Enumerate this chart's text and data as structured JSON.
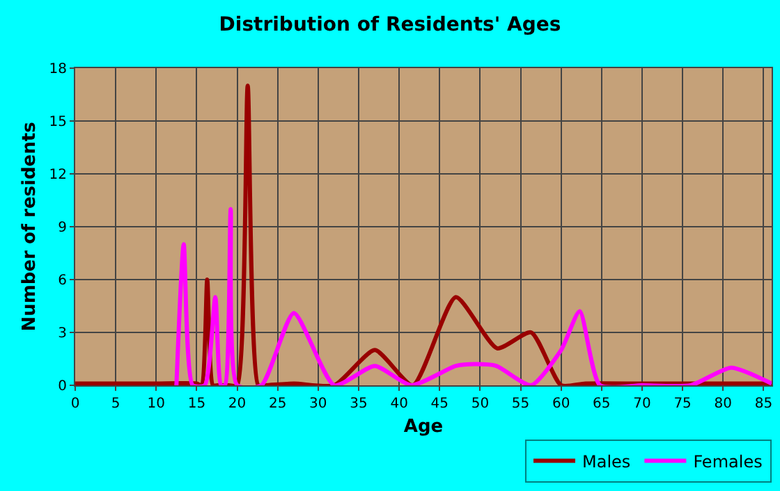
{
  "chart_data": {
    "type": "line",
    "title": "Distribution of Residents' Ages",
    "xlabel": "Age",
    "ylabel": "Number of residents",
    "xlim": [
      0,
      86
    ],
    "xticks": [
      0,
      5,
      10,
      15,
      20,
      25,
      30,
      35,
      40,
      45,
      50,
      55,
      60,
      65,
      70,
      75,
      80,
      85
    ],
    "ylim": [
      0,
      18
    ],
    "yticks": [
      0,
      3,
      6,
      9,
      12,
      15,
      18
    ],
    "grid": true,
    "legend": "bottom right",
    "marker": "none",
    "line_style": "solid",
    "series": [
      {
        "name": "Males",
        "color": "#990000",
        "x": [
          0,
          5,
          10,
          15,
          15.6,
          16.3,
          17,
          17.6,
          19,
          20,
          21.3,
          22.6,
          23.5,
          27,
          32,
          37,
          41.7,
          47,
          52.1,
          56.3,
          60,
          63,
          70,
          80,
          86
        ],
        "values": [
          0.1,
          0.1,
          0.1,
          0.1,
          0,
          6,
          0,
          0,
          0,
          0,
          17,
          0,
          0,
          0.1,
          0,
          2,
          0,
          5,
          2.1,
          3,
          0,
          0.1,
          0.1,
          0.1,
          0.1
        ]
      },
      {
        "name": "Females",
        "color": "#ff00ff",
        "x": [
          12.5,
          13.4,
          14.5,
          16,
          17.3,
          18,
          18.5,
          19.2,
          20,
          23,
          27,
          32,
          37,
          41.5,
          47,
          49.4,
          52,
          56.3,
          60,
          62.3,
          64.8,
          70,
          76,
          81,
          86
        ],
        "values": [
          0,
          8,
          0,
          0,
          5,
          0,
          0,
          10,
          0,
          0,
          4.1,
          0,
          1.1,
          0,
          1.1,
          1.2,
          1.1,
          0,
          2,
          4.2,
          0,
          0,
          0,
          1,
          0.1
        ]
      }
    ]
  }
}
